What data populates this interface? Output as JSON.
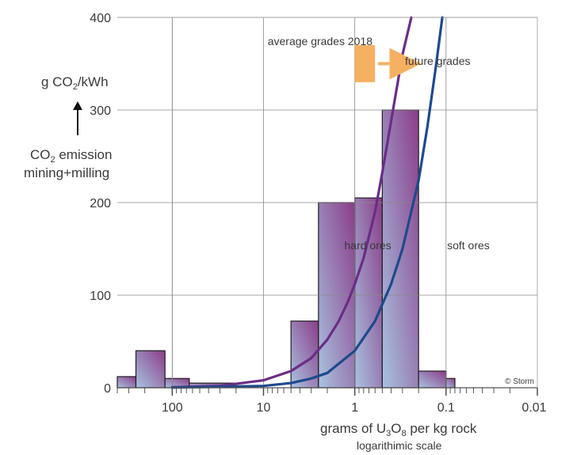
{
  "chart_data": {
    "type": "bar",
    "title": "",
    "xlabel_parts": [
      "grams of U",
      "3",
      "O",
      "8",
      " per kg rock"
    ],
    "xlabel_sub": "logarithimic scale",
    "ylabel_unit_parts": [
      "g CO",
      "2",
      "/kWh"
    ],
    "ylabel_desc_line1_parts": [
      "CO",
      "2",
      " emission"
    ],
    "ylabel_desc_line2": "mining+milling",
    "x_scale": "log-reversed",
    "xlim": [
      400,
      0.01
    ],
    "ylim": [
      0,
      400
    ],
    "x_ticks": [
      100,
      10,
      1,
      0.1,
      0.01
    ],
    "x_tick_labels": [
      "100",
      "10",
      "1",
      "0.1",
      "0.01"
    ],
    "y_ticks": [
      0,
      100,
      200,
      300,
      400
    ],
    "y_tick_labels": [
      "0",
      "100",
      "200",
      "300",
      "400"
    ],
    "grid": true,
    "histogram_bins": [
      {
        "x_from": 400,
        "x_to": 250,
        "value": 12
      },
      {
        "x_from": 250,
        "x_to": 120,
        "value": 40
      },
      {
        "x_from": 120,
        "x_to": 65,
        "value": 10
      },
      {
        "x_from": 65,
        "x_to": 20,
        "value": 5
      },
      {
        "x_from": 5,
        "x_to": 2.5,
        "value": 72
      },
      {
        "x_from": 2.5,
        "x_to": 1,
        "value": 200
      },
      {
        "x_from": 1,
        "x_to": 0.5,
        "value": 205
      },
      {
        "x_from": 0.5,
        "x_to": 0.2,
        "value": 300
      },
      {
        "x_from": 0.2,
        "x_to": 0.1,
        "value": 18
      },
      {
        "x_from": 0.1,
        "x_to": 0.08,
        "value": 10
      }
    ],
    "series": [
      {
        "name": "hard ores",
        "color": "#6a2d86",
        "points": [
          [
            100,
            0.5
          ],
          [
            30,
            2
          ],
          [
            10,
            8
          ],
          [
            5,
            18
          ],
          [
            3,
            32
          ],
          [
            2,
            52
          ],
          [
            1.5,
            72
          ],
          [
            1.2,
            92
          ],
          [
            1,
            112
          ],
          [
            0.8,
            140
          ],
          [
            0.6,
            190
          ],
          [
            0.5,
            232
          ],
          [
            0.4,
            288
          ],
          [
            0.3,
            360
          ],
          [
            0.24,
            400
          ]
        ]
      },
      {
        "name": "soft ores",
        "color": "#1e4a8c",
        "points": [
          [
            100,
            0.2
          ],
          [
            10,
            2
          ],
          [
            5,
            5
          ],
          [
            3,
            10
          ],
          [
            2,
            16
          ],
          [
            1,
            40
          ],
          [
            0.6,
            72
          ],
          [
            0.4,
            112
          ],
          [
            0.3,
            150
          ],
          [
            0.2,
            224
          ],
          [
            0.16,
            282
          ],
          [
            0.13,
            345
          ],
          [
            0.11,
            400
          ]
        ]
      }
    ],
    "annotations": {
      "average_grades": "average grades 2018",
      "future_grades": "future grades",
      "hard_label": "hard ores",
      "soft_label": "soft ores",
      "copyright": "© Storm"
    },
    "colors": {
      "bar_gradient_start": "#a8c3e1",
      "bar_gradient_end": "#8a3d88",
      "arrow": "#f5b061",
      "grid": "#8a8a8a"
    }
  }
}
